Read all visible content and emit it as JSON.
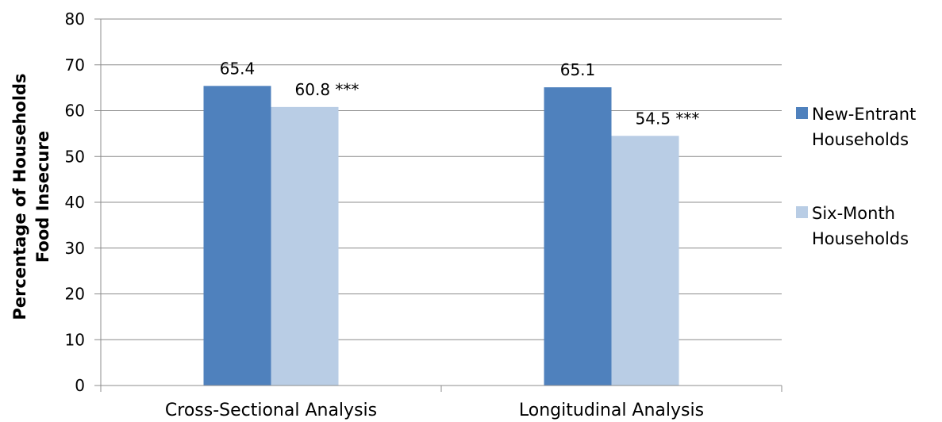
{
  "chart_data": {
    "type": "bar",
    "categories": [
      "Cross-Sectional Analysis",
      "Longitudinal Analysis"
    ],
    "series": [
      {
        "name": "New-Entrant Households",
        "legend_lines": [
          "New-Entrant",
          "Households"
        ],
        "values": [
          65.4,
          65.1
        ],
        "labels": [
          "65.4",
          "65.1"
        ],
        "color": "#4f81bd"
      },
      {
        "name": "Six-Month Households",
        "legend_lines": [
          "Six-Month",
          "Households"
        ],
        "values": [
          60.8,
          54.5
        ],
        "labels": [
          "60.8 ***",
          "54.5 ***"
        ],
        "color": "#b9cde5"
      }
    ],
    "ylabel_lines": [
      "Percentage of Households",
      "Food Insecure"
    ],
    "ylim": [
      0,
      80
    ],
    "yticks": [
      0,
      10,
      20,
      30,
      40,
      50,
      60,
      70,
      80
    ],
    "grid": true,
    "legend_position": "right"
  }
}
